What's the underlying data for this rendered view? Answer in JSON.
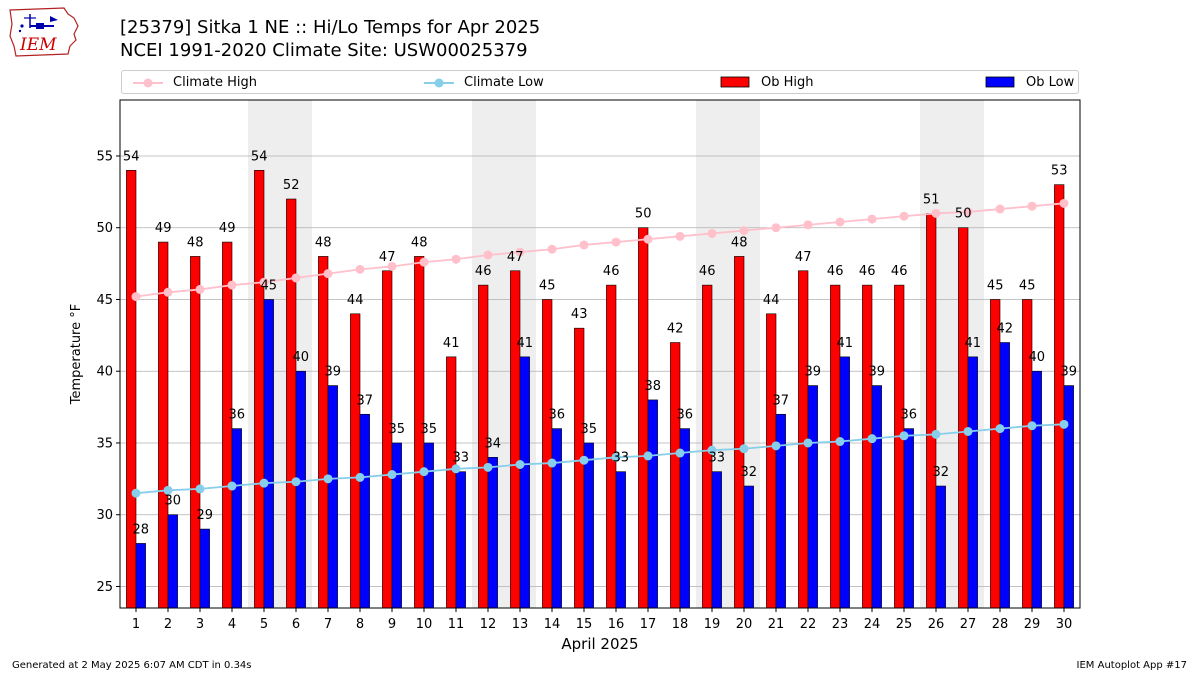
{
  "logo": {
    "text": "IEM"
  },
  "header": {
    "title": "[25379] Sitka 1 NE :: Hi/Lo Temps for Apr 2025",
    "subtitle": "NCEI 1991-2020 Climate Site: USW00025379"
  },
  "legend": {
    "items": [
      "Climate High",
      "Climate Low",
      "Ob High",
      "Ob Low"
    ]
  },
  "footer": {
    "left": "Generated at 2 May 2025 6:07 AM CDT in 0.34s",
    "right": "IEM Autoplot App #17"
  },
  "colors": {
    "ob_high": "#ff0000",
    "ob_low": "#0000ff",
    "climate_high": "#ffc0cb",
    "climate_low": "#87ceeb",
    "weekend_band": "#eeeeee"
  },
  "chart_data": {
    "type": "bar",
    "xlabel": "April 2025",
    "ylabel": "Temperature °F",
    "ylim": [
      23.5,
      58.9
    ],
    "yticks": [
      25,
      30,
      35,
      40,
      45,
      50,
      55
    ],
    "grid": true,
    "legend_position": "top",
    "categories": [
      1,
      2,
      3,
      4,
      5,
      6,
      7,
      8,
      9,
      10,
      11,
      12,
      13,
      14,
      15,
      16,
      17,
      18,
      19,
      20,
      21,
      22,
      23,
      24,
      25,
      26,
      27,
      28,
      29,
      30
    ],
    "weekend_days": [
      5,
      6,
      12,
      13,
      19,
      20,
      26,
      27
    ],
    "series": [
      {
        "name": "Ob High",
        "kind": "bar",
        "values": [
          54,
          49,
          48,
          49,
          54,
          52,
          48,
          44,
          47,
          48,
          41,
          46,
          47,
          45,
          43,
          46,
          50,
          42,
          46,
          48,
          44,
          47,
          46,
          46,
          46,
          51,
          50,
          45,
          45,
          53
        ]
      },
      {
        "name": "Ob Low",
        "kind": "bar",
        "values": [
          28,
          30,
          29,
          36,
          45,
          40,
          39,
          37,
          35,
          35,
          33,
          34,
          41,
          36,
          35,
          33,
          38,
          36,
          33,
          32,
          37,
          39,
          41,
          39,
          36,
          32,
          41,
          42,
          40,
          39
        ]
      },
      {
        "name": "Climate High",
        "kind": "line",
        "values": [
          45.2,
          45.5,
          45.7,
          46.0,
          46.2,
          46.5,
          46.8,
          47.1,
          47.3,
          47.6,
          47.8,
          48.1,
          48.3,
          48.5,
          48.8,
          49.0,
          49.2,
          49.4,
          49.6,
          49.8,
          50.0,
          50.2,
          50.4,
          50.6,
          50.8,
          51.0,
          51.1,
          51.3,
          51.5,
          51.7
        ]
      },
      {
        "name": "Climate Low",
        "kind": "line",
        "values": [
          31.5,
          31.7,
          31.8,
          32.0,
          32.2,
          32.3,
          32.5,
          32.6,
          32.8,
          33.0,
          33.2,
          33.3,
          33.5,
          33.6,
          33.8,
          34.0,
          34.1,
          34.3,
          34.5,
          34.6,
          34.8,
          35.0,
          35.1,
          35.3,
          35.5,
          35.6,
          35.8,
          36.0,
          36.2,
          36.3
        ]
      }
    ]
  }
}
